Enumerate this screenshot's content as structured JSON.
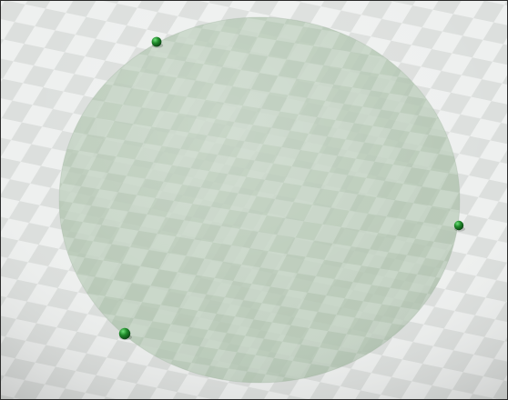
{
  "scene": {
    "view": "3d-viewport",
    "ground": {
      "pattern": "checkerboard",
      "light_color": "#eef0ef",
      "dark_color": "#dcdfdd",
      "shade_color": "#b9bcbb"
    },
    "disc": {
      "shape": "circle",
      "fill_color": "#a7bda6",
      "opacity": 0.62,
      "tile_light": "#cfdccf",
      "tile_dark": "#b7c9b6"
    },
    "markers": {
      "count": 3,
      "color": "#1f8a2a",
      "highlight": "#6fe07a",
      "shadow": "#0b3f12"
    }
  }
}
